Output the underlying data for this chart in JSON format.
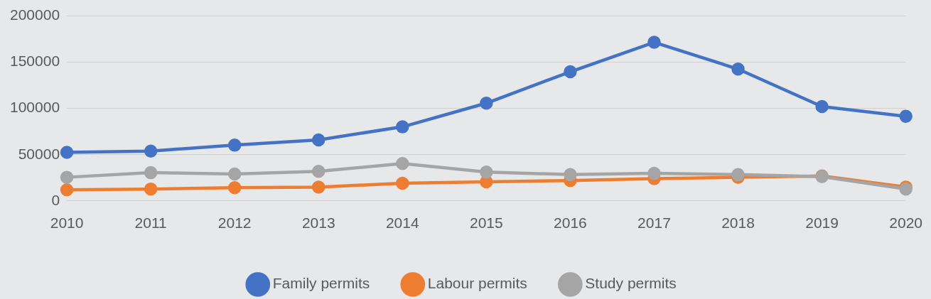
{
  "chart_data": {
    "type": "line",
    "categories": [
      "2010",
      "2011",
      "2012",
      "2013",
      "2014",
      "2015",
      "2016",
      "2017",
      "2018",
      "2019",
      "2020"
    ],
    "series": [
      {
        "name": "Family permits",
        "color": "#4472c4",
        "values": [
          52500,
          53900,
          60300,
          66000,
          80100,
          105700,
          139700,
          171600,
          142600,
          102100,
          91500
        ]
      },
      {
        "name": "Labour permits",
        "color": "#ed7d31",
        "values": [
          12000,
          12800,
          14200,
          14900,
          19100,
          20600,
          22000,
          24100,
          25500,
          27000,
          14900
        ]
      },
      {
        "name": "Study permits",
        "color": "#a5a5a5",
        "values": [
          25500,
          30500,
          29100,
          31900,
          40400,
          31200,
          28400,
          29800,
          28400,
          26200,
          12800
        ]
      }
    ],
    "ylim": [
      0,
      200000
    ],
    "yticks": [
      0,
      50000,
      100000,
      150000,
      200000
    ],
    "grid": "y",
    "legend": "bottom",
    "marker": "circle",
    "line_style": "solid"
  }
}
